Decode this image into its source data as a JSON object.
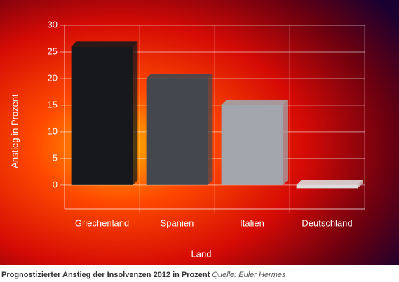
{
  "chart_data": {
    "type": "bar",
    "title": "Prognostizierter Anstieg der Insolvenzen 2012 in Prozent",
    "source": "Quelle: Euler Hermes",
    "x_label": "Land",
    "y_label": "Anstieg in Prozent",
    "categories": [
      "Griechenland",
      "Spanien",
      "Italien",
      "Deutschland"
    ],
    "values": [
      26,
      20,
      15,
      -0.6
    ],
    "colors": [
      "#16181b",
      "#44484e",
      "#a2a6ac",
      "#dcdcdc"
    ],
    "ylim": [
      -4.5,
      30
    ],
    "yticks": [
      0,
      5,
      10,
      15,
      20,
      25,
      30
    ],
    "grid": true
  }
}
